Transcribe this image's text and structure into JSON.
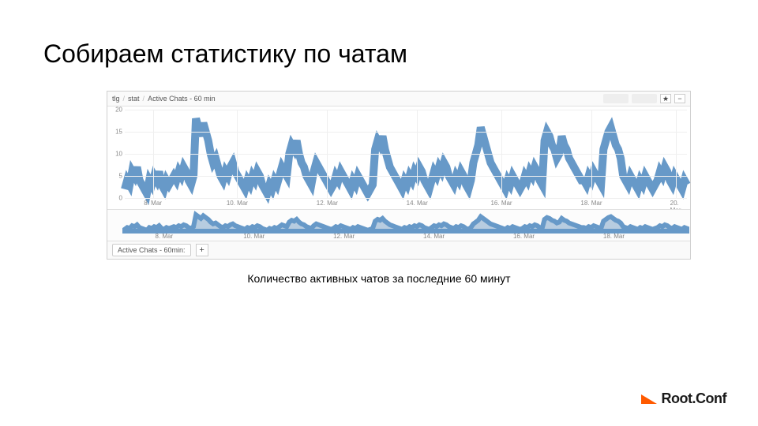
{
  "slide_title": "Собираем статистику по чатам",
  "caption": "Количество активных чатов за последние 60 минут",
  "logo_text": "Root.Conf",
  "logo_color": "#ff5a00",
  "chart": {
    "type": "line",
    "breadcrumb": [
      "tlg",
      "stat",
      "Active Chats - 60 min"
    ],
    "line_color": "#6799c8",
    "line_width": 1,
    "background_color": "#ffffff",
    "grid_color": "#efefef",
    "axis_font_color": "#888888",
    "axis_font_size": 8,
    "ylim": [
      0,
      20
    ],
    "yticks": [
      0,
      5,
      10,
      15,
      20
    ],
    "xticks": [
      "8. Mar",
      "10. Mar",
      "12. Mar",
      "14. Mar",
      "16. Mar",
      "18. Mar",
      "20. Mar"
    ],
    "xtick_positions": [
      0.05,
      0.2,
      0.36,
      0.52,
      0.67,
      0.83,
      0.98
    ],
    "series": [
      2,
      4,
      3,
      6,
      5,
      7,
      4,
      3,
      2,
      1,
      4,
      3,
      5,
      4,
      6,
      3,
      2,
      4,
      3,
      4,
      5,
      4,
      6,
      5,
      7,
      6,
      4,
      3,
      5,
      18,
      16,
      14,
      17,
      15,
      13,
      10,
      8,
      9,
      7,
      5,
      4,
      6,
      5,
      7,
      8,
      6,
      5,
      4,
      3,
      2,
      4,
      3,
      5,
      4,
      6,
      5,
      3,
      2,
      1,
      3,
      2,
      4,
      3,
      5,
      7,
      6,
      5,
      10,
      12,
      11,
      13,
      10,
      8,
      7,
      5,
      4,
      3,
      6,
      8,
      7,
      6,
      5,
      4,
      3,
      2,
      3,
      5,
      4,
      6,
      5,
      4,
      3,
      2,
      4,
      3,
      5,
      4,
      3,
      2,
      1,
      2,
      3,
      11,
      13,
      12,
      14,
      11,
      9,
      7,
      6,
      5,
      4,
      3,
      2,
      4,
      3,
      5,
      4,
      6,
      5,
      7,
      6,
      4,
      3,
      2,
      4,
      6,
      5,
      7,
      6,
      8,
      7,
      5,
      4,
      3,
      5,
      4,
      6,
      5,
      3,
      2,
      4,
      8,
      10,
      12,
      16,
      14,
      12,
      10,
      8,
      7,
      6,
      5,
      4,
      3,
      2,
      4,
      3,
      5,
      4,
      3,
      2,
      3,
      5,
      4,
      6,
      5,
      7,
      6,
      4,
      3,
      13,
      15,
      14,
      12,
      11,
      9,
      10,
      14,
      12,
      11,
      9,
      8,
      7,
      6,
      5,
      4,
      4,
      3,
      5,
      4,
      6,
      5,
      4,
      3,
      11,
      13,
      15,
      16,
      14,
      12,
      11,
      9,
      5,
      4,
      3,
      5,
      4,
      3,
      2,
      4,
      3,
      5,
      4,
      3,
      2,
      3,
      4,
      6,
      5,
      7,
      6,
      4,
      3,
      5,
      4,
      3,
      2,
      4,
      3
    ]
  },
  "overview": {
    "fill_color": "#9ab8d4",
    "line_color": "#6799c8",
    "xticks": [
      "8. Mar",
      "10. Mar",
      "12. Mar",
      "14. Mar",
      "16. Mar",
      "18. Mar"
    ],
    "xtick_positions": [
      0.07,
      0.23,
      0.39,
      0.55,
      0.71,
      0.87
    ]
  },
  "footer": {
    "metric_label": "Active Chats - 60min:",
    "add_label": "+"
  },
  "header_icons": {
    "star": "★",
    "minus": "−"
  }
}
